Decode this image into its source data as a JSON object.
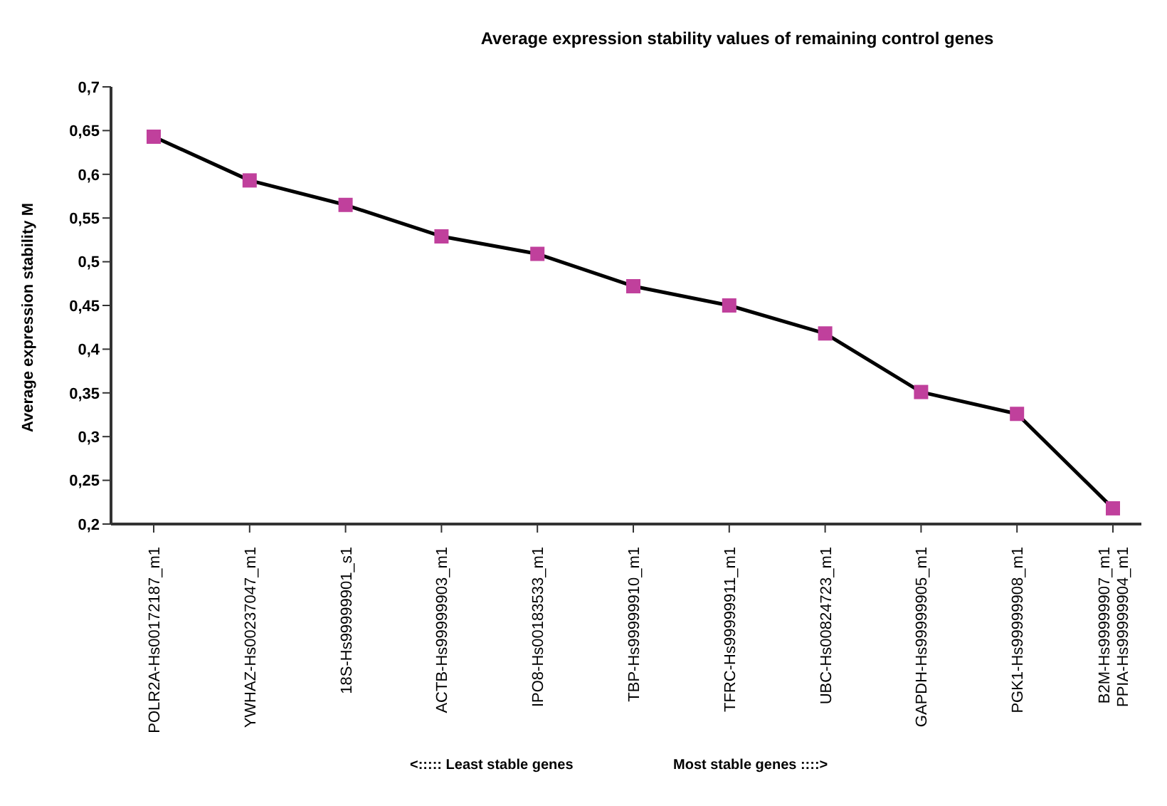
{
  "chart_data": {
    "type": "line",
    "title": "Average expression stability values of remaining control genes",
    "ylabel": "Average expression stability M",
    "categories": [
      "POLR2A-Hs00172187_m1",
      "YWHAZ-Hs00237047_m1",
      "18S-Hs99999901_s1",
      "ACTB-Hs99999903_m1",
      "IPO8-Hs00183533_m1",
      "TBP-Hs99999910_m1",
      "TFRC-Hs99999911_m1",
      "UBC-Hs00824723_m1",
      "GAPDH-Hs99999905_m1",
      "PGK1-Hs99999908_m1",
      "B2M-Hs99999907_m1\nPPIA-Hs99999904_m1"
    ],
    "series": [
      {
        "color": "#c0409c",
        "values": [
          0.643,
          0.593,
          0.565,
          0.529,
          0.509,
          0.472,
          0.45,
          0.418,
          0.351,
          0.326,
          0.218
        ]
      }
    ],
    "ylim": [
      0.2,
      0.7
    ],
    "yticks": [
      {
        "value": 0.2,
        "label": "0,2"
      },
      {
        "value": 0.25,
        "label": "0,25"
      },
      {
        "value": 0.3,
        "label": "0,3"
      },
      {
        "value": 0.35,
        "label": "0,35"
      },
      {
        "value": 0.4,
        "label": "0,4"
      },
      {
        "value": 0.45,
        "label": "0,45"
      },
      {
        "value": 0.5,
        "label": "0,5"
      },
      {
        "value": 0.55,
        "label": "0,55"
      },
      {
        "value": 0.6,
        "label": "0,6"
      },
      {
        "value": 0.65,
        "label": "0,65"
      },
      {
        "value": 0.7,
        "label": "0,7"
      }
    ],
    "marker": "square",
    "line_style": "solid",
    "grid": false,
    "annotations": [
      "<::::: Least stable genes",
      "Most stable genes ::::>"
    ]
  }
}
